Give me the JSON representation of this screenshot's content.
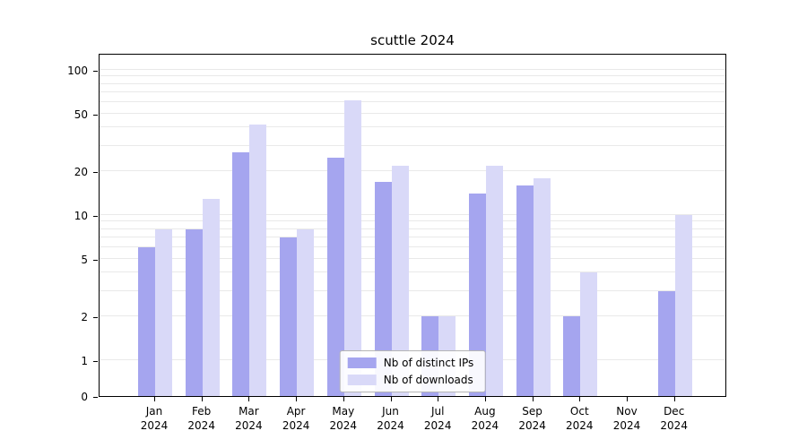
{
  "title": "scuttle 2024",
  "colors": {
    "distinct_ips": "#a5a5ef",
    "downloads": "#d9d9f8",
    "grid": "#e9e9e9",
    "axis": "#000000",
    "legend_border": "#b5b5b5"
  },
  "chart_data": {
    "type": "bar",
    "title": "scuttle 2024",
    "categories": [
      "Jan 2024",
      "Feb 2024",
      "Mar 2024",
      "Apr 2024",
      "May 2024",
      "Jun 2024",
      "Jul 2024",
      "Aug 2024",
      "Sep 2024",
      "Oct 2024",
      "Nov 2024",
      "Dec 2024"
    ],
    "series": [
      {
        "name": "Nb of distinct IPs",
        "values": [
          6,
          8,
          27,
          7,
          25,
          17,
          2,
          14,
          16,
          2,
          0,
          3
        ]
      },
      {
        "name": "Nb of downloads",
        "values": [
          8,
          13,
          42,
          8,
          62,
          22,
          2,
          22,
          18,
          4,
          0,
          10
        ]
      }
    ],
    "xlabel": "",
    "ylabel": "",
    "yscale": "symlog",
    "yticks": [
      0,
      1,
      2,
      5,
      10,
      20,
      50,
      100
    ],
    "grid_values": [
      1,
      2,
      3,
      4,
      5,
      6,
      7,
      8,
      9,
      10,
      20,
      30,
      40,
      50,
      60,
      70,
      80,
      90,
      100
    ],
    "ylim": [
      0,
      130
    ],
    "grid": true,
    "legend_position": "lower center"
  }
}
